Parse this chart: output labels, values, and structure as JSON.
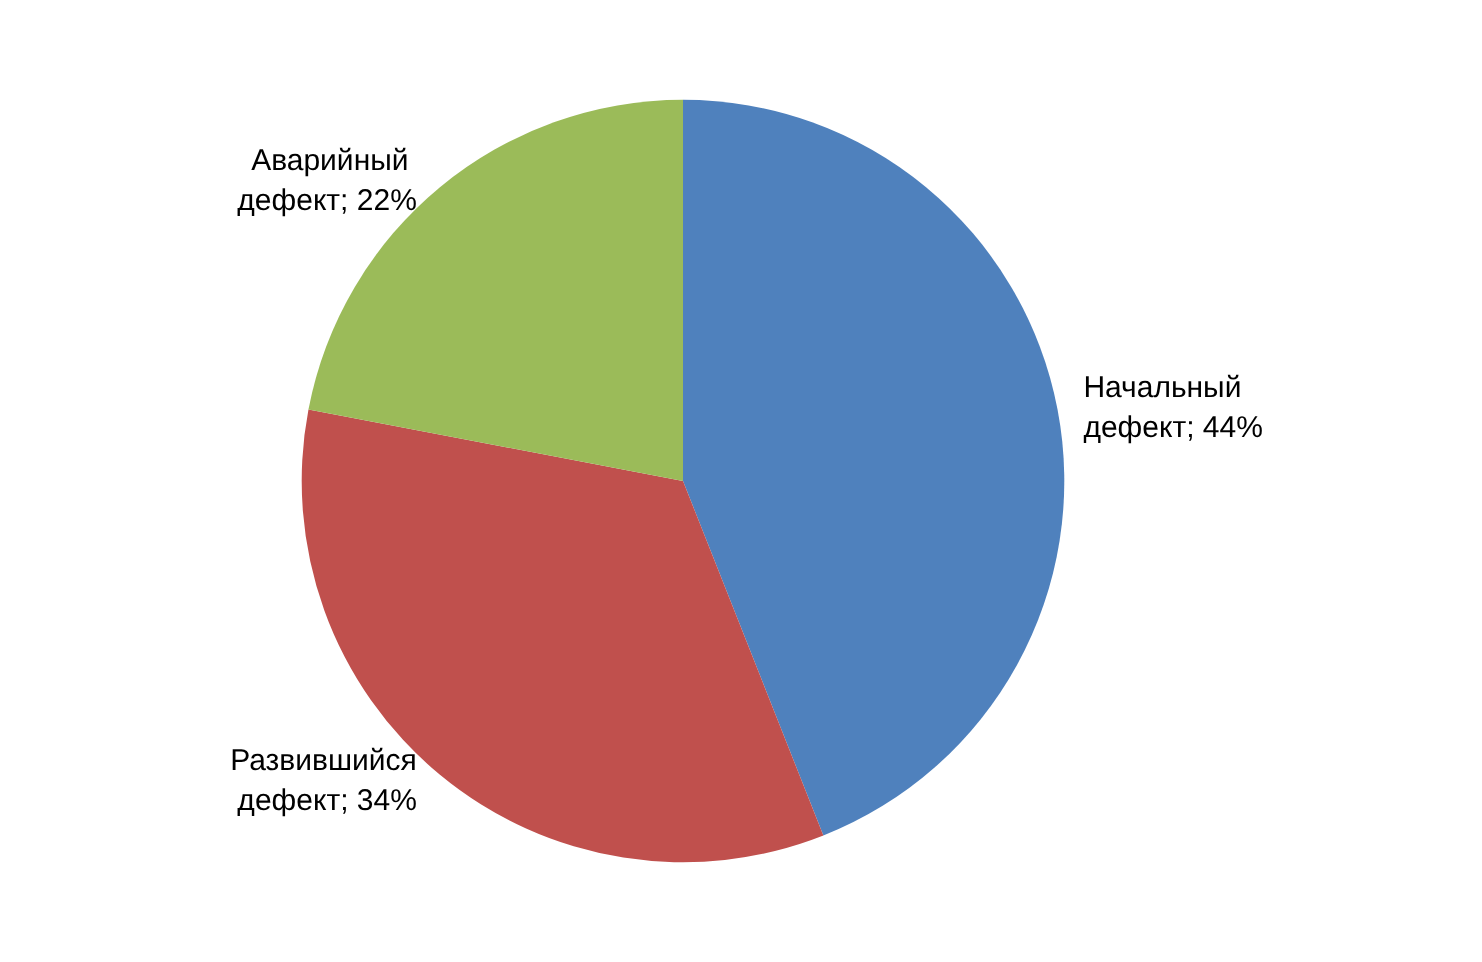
{
  "chart_data": {
    "type": "pie",
    "categories": [
      "Начальный дефект",
      "Развившийся дефект",
      "Аварийный дефект"
    ],
    "values": [
      44,
      34,
      22
    ],
    "value_labels": [
      "44%",
      "34%",
      "22%"
    ],
    "colors": [
      "#4f81bd",
      "#c0504d",
      "#9bbb59"
    ],
    "legend": false
  }
}
